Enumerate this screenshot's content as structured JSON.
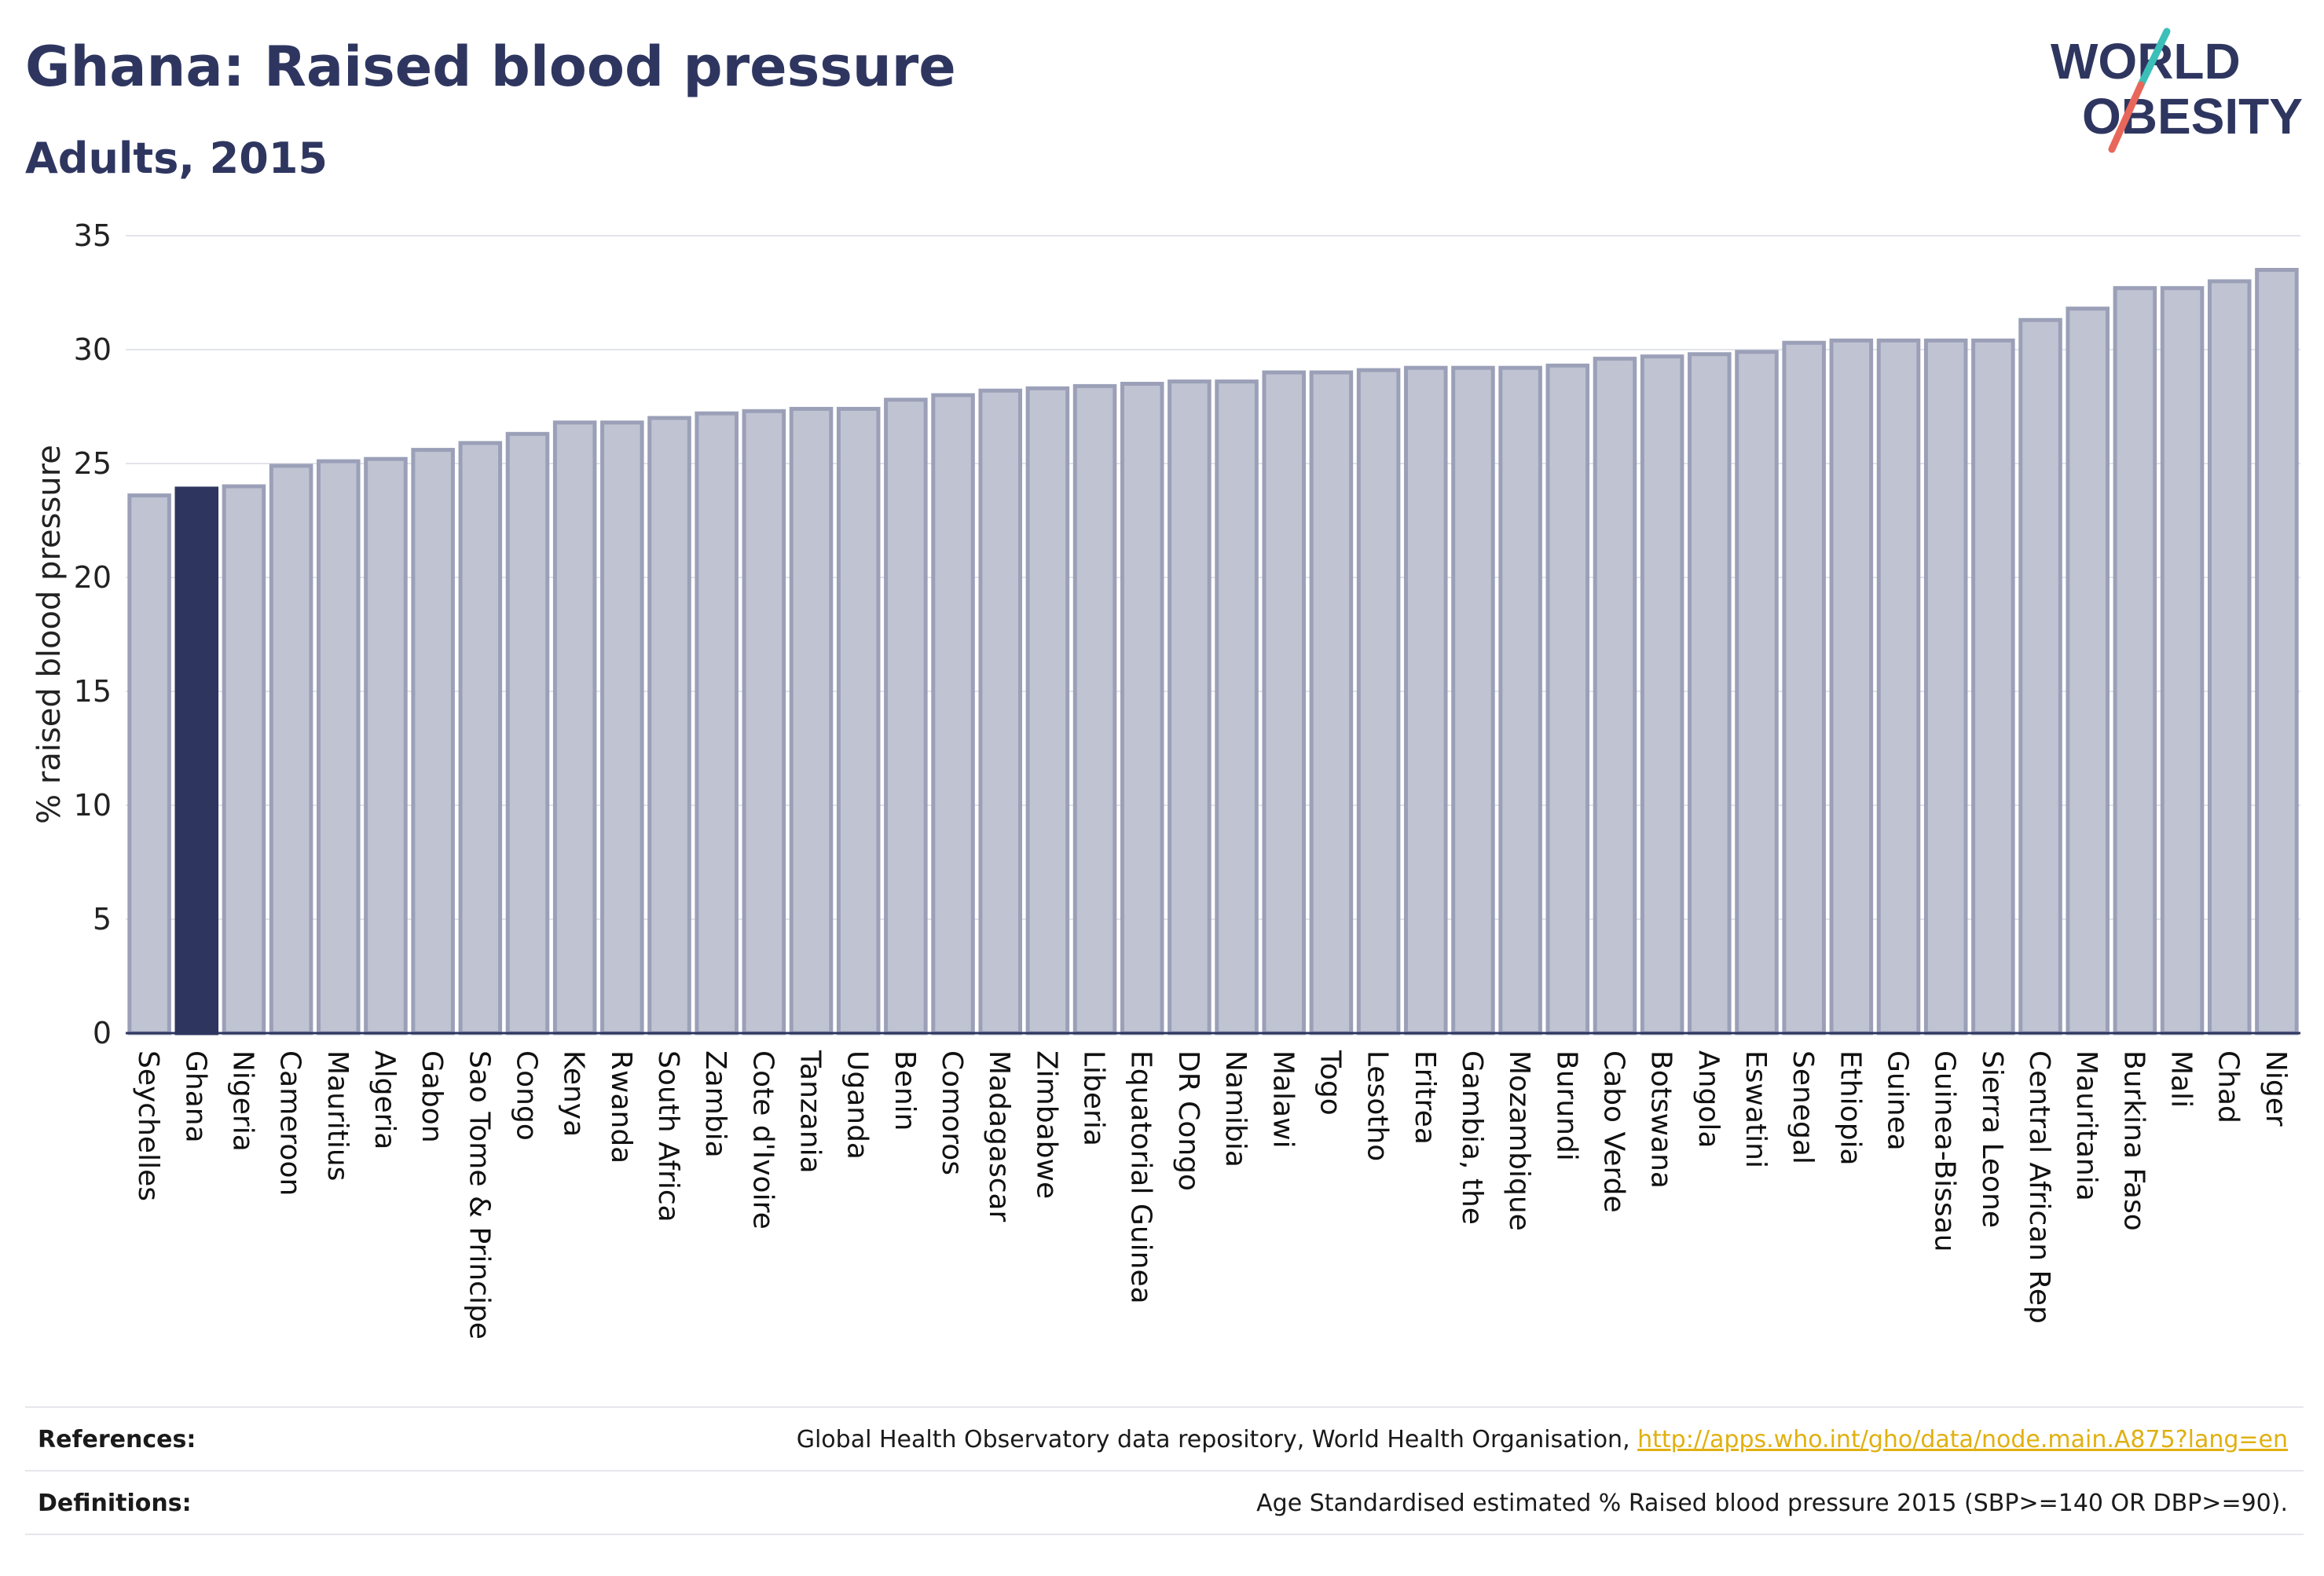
{
  "header": {
    "title": "Ghana: Raised blood pressure",
    "subtitle": "Adults, 2015",
    "logo_text_line1": "WORLD",
    "logo_text_line2": "OBESITY"
  },
  "footer": {
    "references_label": "References:",
    "references_text": "Global Health Observatory data repository, World Health Organisation, ",
    "references_link": "http://apps.who.int/gho/data/node.main.A875?lang=en",
    "definitions_label": "Definitions:",
    "definitions_text": "Age Standardised estimated % Raised blood pressure 2015 (SBP>=140 OR DBP>=90)."
  },
  "colors": {
    "highlight": "#2e3660",
    "bar_fill": "#c0c3d2",
    "bar_stroke": "#9ba0b8",
    "title": "#2e3660",
    "logo_slash_teal": "#3bbfb8",
    "logo_slash_coral": "#e8675a"
  },
  "chart_data": {
    "type": "bar",
    "title": "Ghana: Raised blood pressure",
    "subtitle": "Adults, 2015",
    "xlabel": "",
    "ylabel": "% raised blood pressure",
    "ylim": [
      0,
      35
    ],
    "yticks": [
      0,
      5,
      10,
      15,
      20,
      25,
      30,
      35
    ],
    "grid": true,
    "highlight_category": "Ghana",
    "categories": [
      "Seychelles",
      "Ghana",
      "Nigeria",
      "Cameroon",
      "Mauritius",
      "Algeria",
      "Gabon",
      "Sao Tome & Principe",
      "Congo",
      "Kenya",
      "Rwanda",
      "South Africa",
      "Zambia",
      "Cote d'Ivoire",
      "Tanzania",
      "Uganda",
      "Benin",
      "Comoros",
      "Madagascar",
      "Zimbabwe",
      "Liberia",
      "Equatorial Guinea",
      "DR Congo",
      "Namibia",
      "Malawi",
      "Togo",
      "Lesotho",
      "Eritrea",
      "Gambia, the",
      "Mozambique",
      "Burundi",
      "Cabo Verde",
      "Botswana",
      "Angola",
      "Eswatini",
      "Senegal",
      "Ethiopia",
      "Guinea",
      "Guinea-Bissau",
      "Sierra Leone",
      "Central African Rep",
      "Mauritania",
      "Burkina Faso",
      "Mali",
      "Chad",
      "Niger"
    ],
    "values": [
      23.6,
      23.9,
      24.0,
      24.9,
      25.1,
      25.2,
      25.6,
      25.9,
      26.3,
      26.8,
      26.8,
      27.0,
      27.2,
      27.3,
      27.4,
      27.4,
      27.8,
      28.0,
      28.2,
      28.3,
      28.4,
      28.5,
      28.6,
      28.6,
      29.0,
      29.0,
      29.1,
      29.2,
      29.2,
      29.2,
      29.3,
      29.6,
      29.7,
      29.8,
      29.9,
      30.3,
      30.4,
      30.4,
      30.4,
      30.4,
      31.3,
      31.8,
      32.7,
      32.7,
      33.0,
      33.5
    ]
  }
}
